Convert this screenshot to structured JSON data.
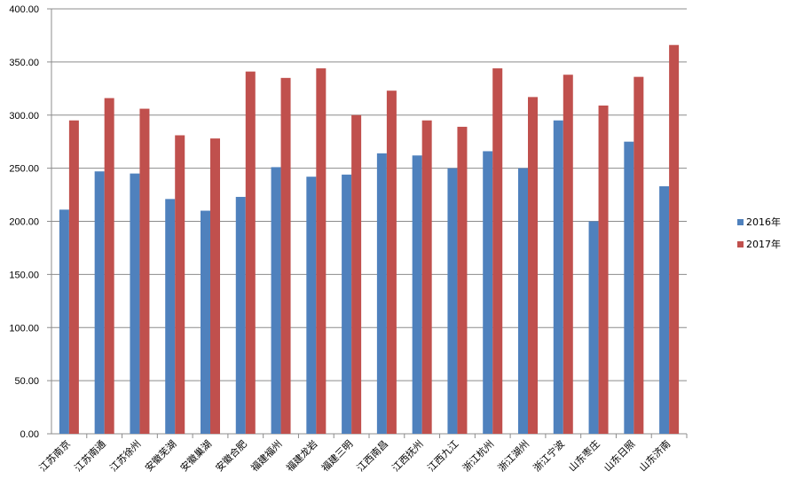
{
  "chart_data": {
    "type": "bar",
    "categories": [
      "江苏南京",
      "江苏南通",
      "江苏徐州",
      "安徽芜湖",
      "安徽巢湖",
      "安徽合肥",
      "福建福州",
      "福建龙岩",
      "福建三明",
      "江西南昌",
      "江西抚州",
      "江西九江",
      "浙江杭州",
      "浙江湖州",
      "浙江宁波",
      "山东枣庄",
      "山东日照",
      "山东济南"
    ],
    "series": [
      {
        "name": "2016年",
        "color": "#4F81BD",
        "values": [
          211,
          247,
          245,
          221,
          210,
          223,
          251,
          242,
          244,
          264,
          262,
          250,
          266,
          250,
          295,
          200,
          275,
          233
        ]
      },
      {
        "name": "2017年",
        "color": "#C0504D",
        "values": [
          295,
          316,
          306,
          281,
          278,
          341,
          335,
          344,
          300,
          323,
          295,
          289,
          344,
          317,
          338,
          309,
          336,
          366
        ]
      }
    ],
    "ylim": [
      0,
      400
    ],
    "yticks": [
      "0.00",
      "50.00",
      "100.00",
      "150.00",
      "200.00",
      "250.00",
      "300.00",
      "350.00",
      "400.00"
    ],
    "grid": true,
    "legend": "right"
  }
}
